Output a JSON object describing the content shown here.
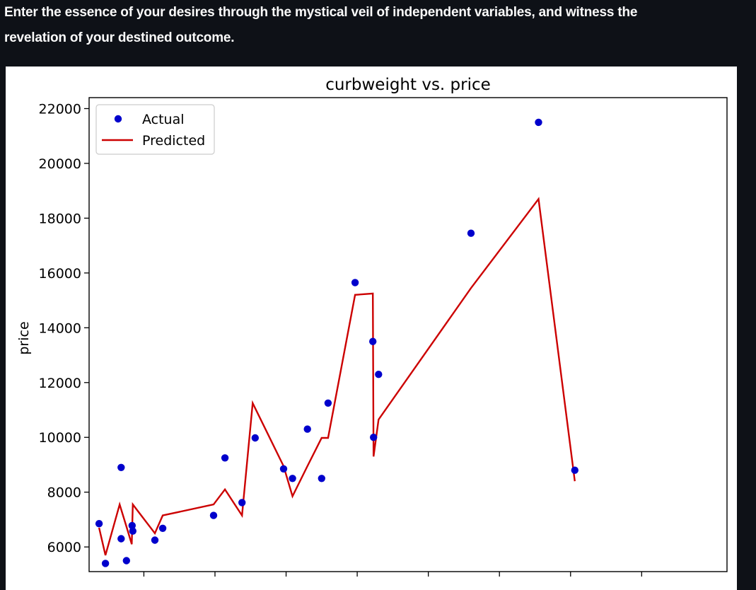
{
  "intro": {
    "line1": "Enter the essence of your desires through the mystical veil of independent variables, and witness the",
    "line2": "revelation of your destined outcome."
  },
  "colors": {
    "actual": "#0000cc",
    "predicted": "#cc0000",
    "page_bg": "#0e1117"
  },
  "chart_data": {
    "type": "scatter",
    "title": "curbweight vs. price",
    "xlabel": "",
    "ylabel": "price",
    "ylim": [
      5100,
      22400
    ],
    "xlim": [
      1846,
      3640
    ],
    "yticks": [
      6000,
      8000,
      10000,
      12000,
      14000,
      16000,
      18000,
      20000,
      22000
    ],
    "ytick_labels": [
      "6000",
      "8000",
      "10000",
      "12000",
      "14000",
      "16000",
      "18000",
      "20000",
      "22000"
    ],
    "xticks": [
      1800,
      2000,
      2200,
      2400,
      2600,
      2800,
      3000,
      3200,
      3400
    ],
    "legend": {
      "location": "top-left",
      "entries": [
        "Actual",
        "Predicted"
      ]
    },
    "series": [
      {
        "name": "Actual",
        "kind": "scatter",
        "points": [
          [
            1874,
            6850
          ],
          [
            1892,
            5400
          ],
          [
            1936,
            8900
          ],
          [
            1936,
            6300
          ],
          [
            1951,
            5500
          ],
          [
            1967,
            6780
          ],
          [
            1969,
            6580
          ],
          [
            2031,
            6250
          ],
          [
            2053,
            6680
          ],
          [
            2196,
            7150
          ],
          [
            2228,
            9250
          ],
          [
            2276,
            7620
          ],
          [
            2313,
            9980
          ],
          [
            2393,
            8850
          ],
          [
            2418,
            8500
          ],
          [
            2460,
            10300
          ],
          [
            2500,
            8500
          ],
          [
            2518,
            11250
          ],
          [
            2594,
            15650
          ],
          [
            2644,
            13500
          ],
          [
            2646,
            10000
          ],
          [
            2660,
            12300
          ],
          [
            2920,
            17450
          ],
          [
            3110,
            21500
          ],
          [
            3212,
            8800
          ]
        ]
      },
      {
        "name": "Predicted",
        "kind": "line",
        "points": [
          [
            1874,
            6700
          ],
          [
            1892,
            5700
          ],
          [
            1932,
            7550
          ],
          [
            1952,
            6700
          ],
          [
            1966,
            6100
          ],
          [
            1969,
            7550
          ],
          [
            2031,
            6500
          ],
          [
            2053,
            7150
          ],
          [
            2196,
            7550
          ],
          [
            2228,
            8100
          ],
          [
            2276,
            7150
          ],
          [
            2306,
            11250
          ],
          [
            2393,
            8950
          ],
          [
            2418,
            7850
          ],
          [
            2460,
            8950
          ],
          [
            2500,
            9980
          ],
          [
            2518,
            9980
          ],
          [
            2594,
            15200
          ],
          [
            2644,
            15250
          ],
          [
            2646,
            9300
          ],
          [
            2660,
            10650
          ],
          [
            2920,
            15450
          ],
          [
            3110,
            18700
          ],
          [
            3212,
            8400
          ]
        ]
      }
    ]
  }
}
